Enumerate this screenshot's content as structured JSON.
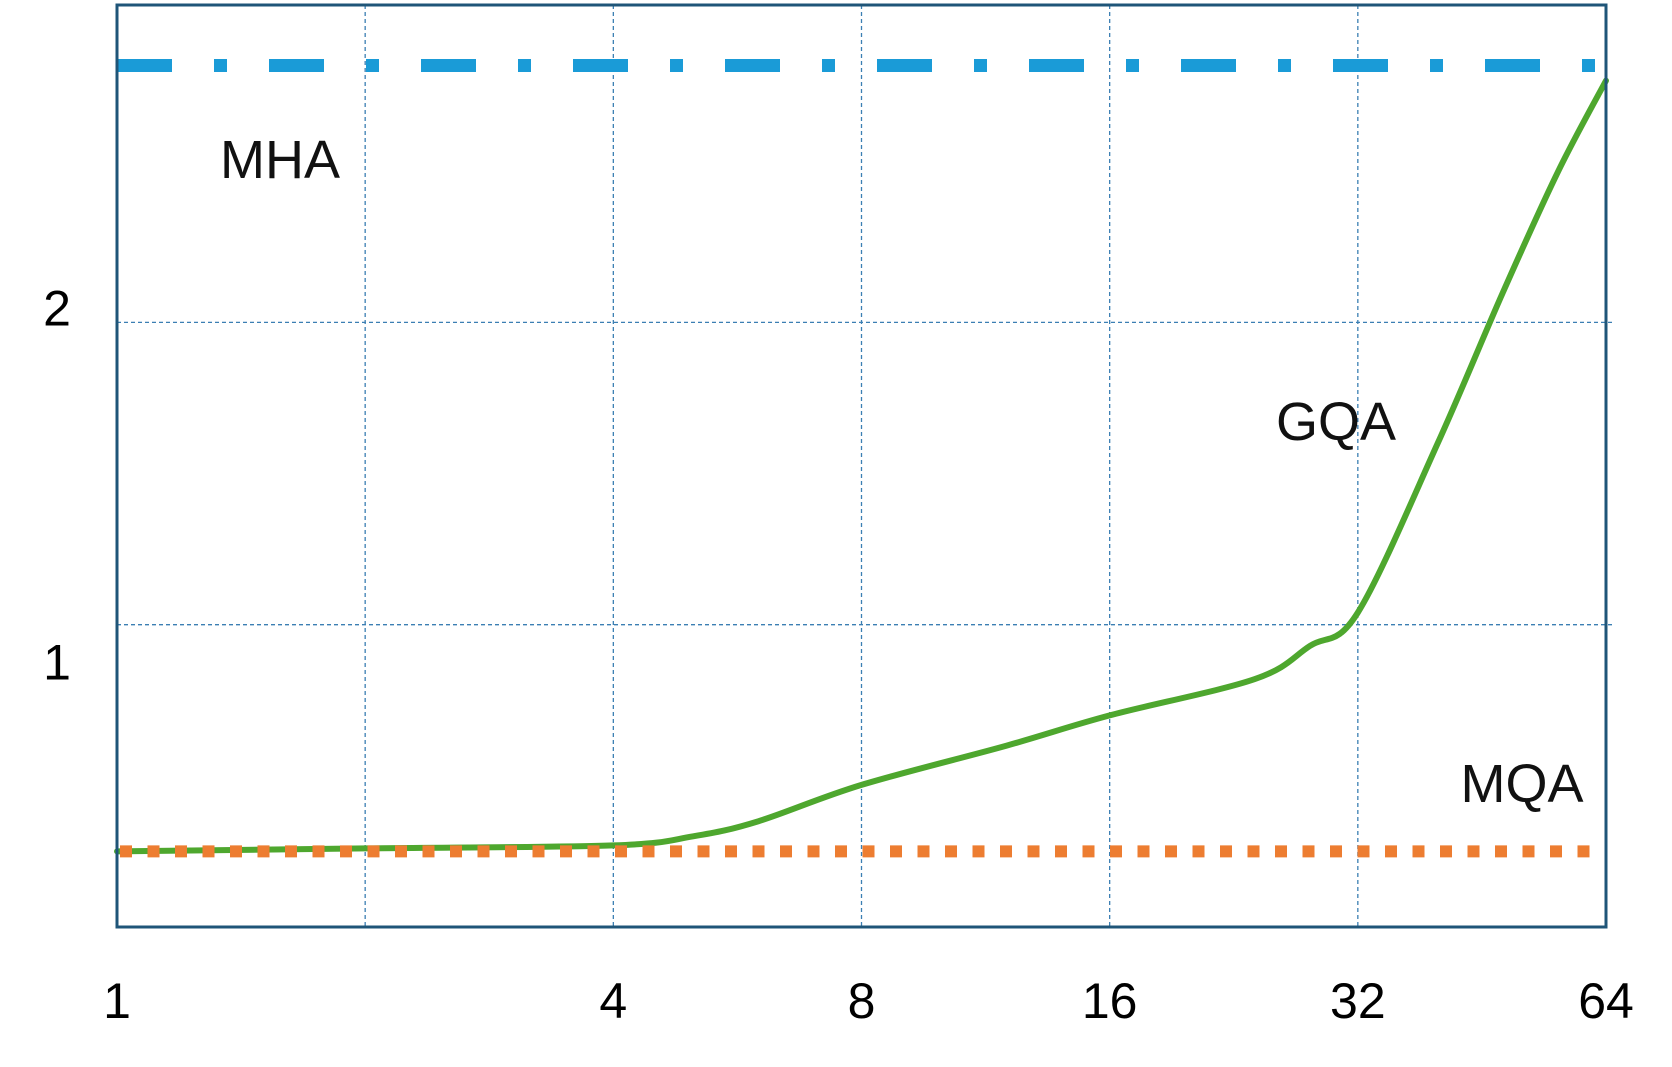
{
  "chart_data": {
    "type": "line",
    "title": "",
    "xlabel": "",
    "ylabel": "",
    "x_scale": "log2",
    "xlim": [
      1,
      64
    ],
    "ylim": [
      0,
      3.05
    ],
    "x_ticks": [
      1,
      2,
      4,
      8,
      16,
      32,
      64
    ],
    "x_tick_labels": [
      "1",
      "",
      "4",
      "8",
      "16",
      "32",
      "64"
    ],
    "y_ticks": [
      1,
      2
    ],
    "y_tick_labels": [
      "1",
      "2"
    ],
    "grid": true,
    "legend": "none",
    "series": [
      {
        "name": "MHA",
        "style": "dash-dot",
        "color": "#1a9bd7",
        "x": [
          1,
          64
        ],
        "y": [
          2.85,
          2.85
        ]
      },
      {
        "name": "GQA",
        "style": "solid",
        "color": "#4ea72e",
        "x": [
          1,
          2,
          4,
          5,
          6,
          8,
          12,
          16,
          24,
          28,
          32,
          40,
          48,
          56,
          64
        ],
        "y": [
          0.25,
          0.26,
          0.27,
          0.3,
          0.35,
          0.47,
          0.6,
          0.7,
          0.82,
          0.93,
          1.04,
          1.6,
          2.1,
          2.5,
          2.8
        ]
      },
      {
        "name": "MQA",
        "style": "dotted",
        "color": "#ed7d31",
        "x": [
          1,
          64
        ],
        "y": [
          0.25,
          0.25
        ]
      }
    ]
  }
}
